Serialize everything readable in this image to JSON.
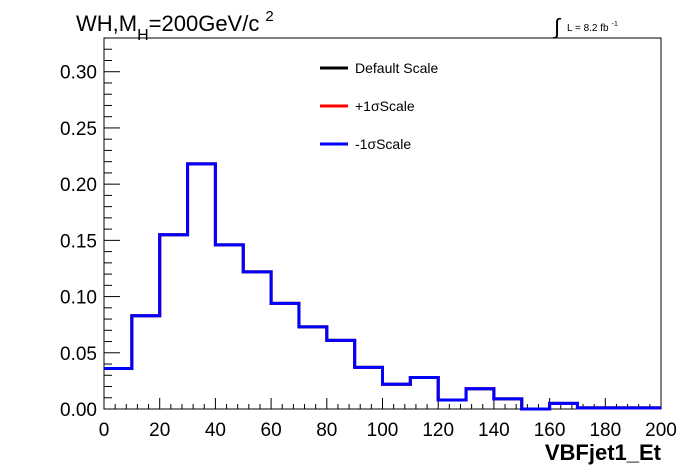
{
  "chart_data": {
    "type": "histogram",
    "title_parts": {
      "main": "WH,M",
      "sub": "H",
      "rest": "=200GeV/c",
      "sup": "2"
    },
    "lumi": {
      "integral": "∫",
      "text": "L = 8.2 fb",
      "sup": "-1"
    },
    "xlabel": "VBFjet1_Et",
    "ylabel": "",
    "xlim": [
      0,
      200
    ],
    "ylim": [
      0,
      0.33
    ],
    "x_ticks": [
      "0",
      "20",
      "40",
      "60",
      "80",
      "100",
      "120",
      "140",
      "160",
      "180",
      "200"
    ],
    "y_ticks": [
      "0.00",
      "0.05",
      "0.10",
      "0.15",
      "0.20",
      "0.25",
      "0.30"
    ],
    "bin_edges": [
      0,
      10,
      20,
      30,
      40,
      50,
      60,
      70,
      80,
      90,
      100,
      110,
      120,
      130,
      140,
      150,
      160,
      170,
      180,
      190,
      200
    ],
    "series": [
      {
        "name": "Default Scale",
        "color": "#000000",
        "values": [
          0.036,
          0.083,
          0.155,
          0.218,
          0.146,
          0.122,
          0.094,
          0.073,
          0.061,
          0.037,
          0.022,
          0.028,
          0.008,
          0.018,
          0.009,
          0.0,
          0.005,
          0.001,
          0.001,
          0.001
        ]
      },
      {
        "name": "+1σScale",
        "color": "#ff0000",
        "values": [
          0.036,
          0.083,
          0.155,
          0.218,
          0.146,
          0.122,
          0.094,
          0.073,
          0.061,
          0.037,
          0.022,
          0.028,
          0.008,
          0.018,
          0.009,
          0.0,
          0.005,
          0.001,
          0.001,
          0.001
        ]
      },
      {
        "name": "-1σScale",
        "color": "#0000ff",
        "values": [
          0.036,
          0.083,
          0.155,
          0.218,
          0.146,
          0.122,
          0.094,
          0.073,
          0.061,
          0.037,
          0.022,
          0.028,
          0.008,
          0.018,
          0.009,
          0.0,
          0.005,
          0.001,
          0.001,
          0.001
        ]
      }
    ],
    "legend_position": "top-center",
    "grid": false
  }
}
